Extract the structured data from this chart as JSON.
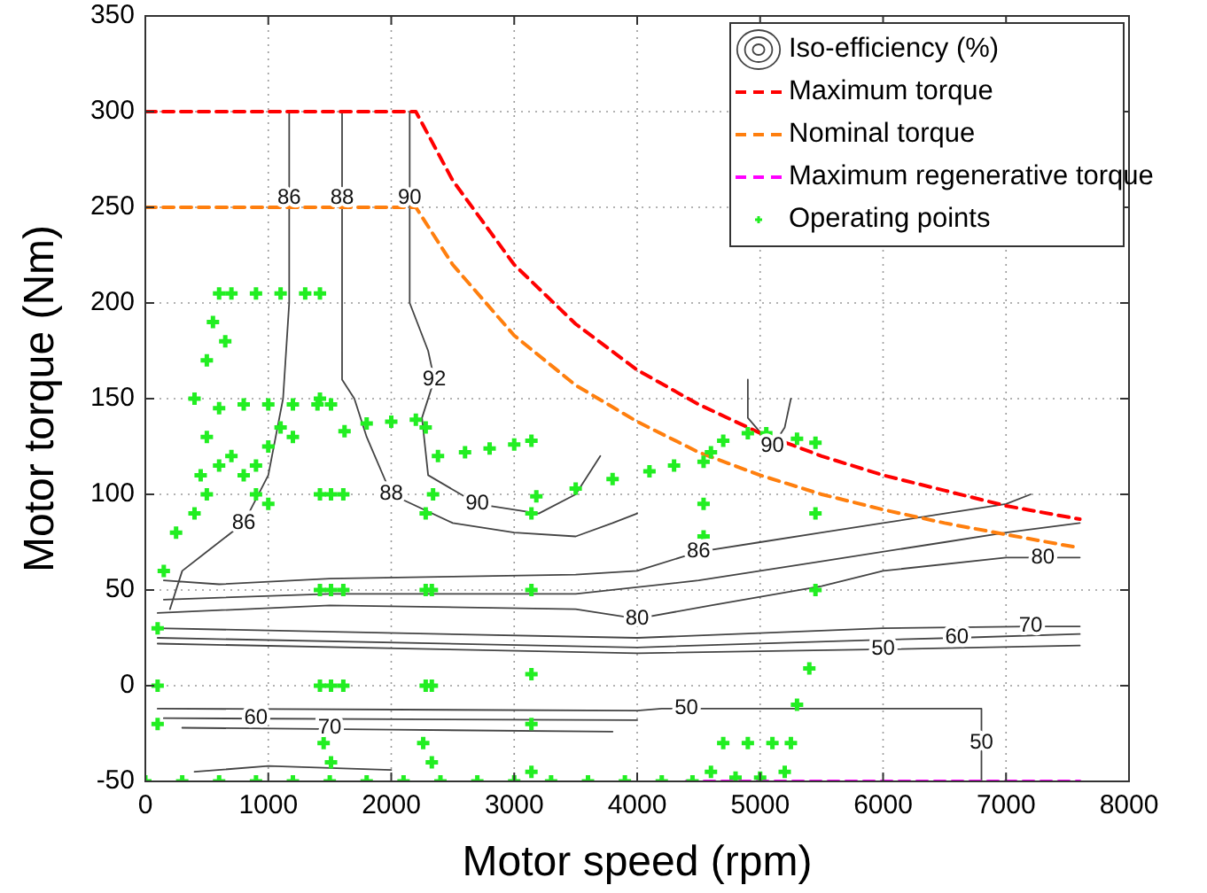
{
  "chart_data": {
    "type": "line",
    "xlabel": "Motor speed (rpm)",
    "ylabel": "Motor torque (Nm)",
    "xlim": [
      0,
      8000
    ],
    "ylim": [
      -50,
      350
    ],
    "xticks": [
      0,
      1000,
      2000,
      3000,
      4000,
      5000,
      6000,
      7000,
      8000
    ],
    "yticks": [
      -50,
      0,
      50,
      100,
      150,
      200,
      250,
      300,
      350
    ],
    "grid": true,
    "legend": "top right",
    "series": [
      {
        "name": "Iso-efficiency (%)",
        "type": "line",
        "color": "#444444",
        "line_style": "solid",
        "x": [
          1170,
          1170,
          1120,
          1000,
          800,
          500,
          300,
          200,
          null,
          1600,
          1600,
          1700,
          1800,
          2000,
          2500,
          3000,
          3500,
          3800,
          4000,
          null,
          2150,
          2150,
          2300,
          2350,
          2250,
          2300,
          2700,
          3200,
          3500,
          3700,
          null,
          4900,
          4900,
          5100,
          5200,
          5250,
          null,
          150,
          600,
          1500,
          2500,
          3500,
          4000,
          4500,
          5000,
          5500,
          6000,
          6500,
          7000,
          7200,
          null,
          150,
          1500,
          3500,
          4500,
          5500,
          6500,
          7000,
          7600,
          null,
          100,
          1500,
          3500,
          4000,
          4600,
          5500,
          6000,
          7000,
          7600,
          null,
          100,
          4000,
          6000,
          7200,
          7600,
          null,
          100,
          4000,
          6000,
          6600,
          7600,
          null,
          100,
          4000,
          6000,
          7600,
          null,
          100,
          4000,
          4200,
          6800,
          6800,
          null,
          150,
          4000,
          null,
          300,
          2000,
          3800,
          null,
          400,
          1000,
          2000
        ],
        "values": [
          300,
          200,
          150,
          110,
          85,
          70,
          60,
          40,
          null,
          300,
          160,
          150,
          130,
          100,
          85,
          80,
          78,
          85,
          90,
          null,
          300,
          200,
          175,
          160,
          140,
          110,
          95,
          90,
          100,
          120,
          null,
          160,
          140,
          125,
          135,
          150,
          null,
          55,
          53,
          56,
          57,
          58,
          60,
          70,
          75,
          80,
          85,
          90,
          95,
          100,
          null,
          45,
          48,
          48,
          55,
          65,
          75,
          80,
          85,
          null,
          38,
          42,
          40,
          35,
          42,
          52,
          60,
          67,
          67,
          null,
          30,
          25,
          30,
          31,
          31,
          null,
          25,
          20,
          24,
          25,
          27,
          null,
          22,
          17,
          19,
          21,
          null,
          -12,
          -13,
          -12,
          -12,
          -50,
          null,
          -17,
          -18,
          null,
          -22,
          -23,
          -24,
          null,
          -45,
          -42,
          -44
        ]
      },
      {
        "name": "Maximum torque",
        "type": "line",
        "color": "#ff0000",
        "line_style": "dashed",
        "x": [
          0,
          2200,
          2500,
          3000,
          3500,
          4000,
          4500,
          5000,
          5500,
          6000,
          6500,
          7000,
          7600
        ],
        "values": [
          300,
          300,
          264,
          220,
          189,
          165,
          147,
          132,
          120,
          110,
          102,
          94,
          87
        ]
      },
      {
        "name": "Nominal torque",
        "type": "line",
        "color": "#ff7f0e",
        "line_style": "dashed",
        "x": [
          0,
          2200,
          2500,
          3000,
          3500,
          4000,
          4500,
          5000,
          5500,
          6000,
          6500,
          7000,
          7600
        ],
        "values": [
          250,
          250,
          220,
          183,
          157,
          138,
          122,
          110,
          100,
          92,
          85,
          79,
          72
        ]
      },
      {
        "name": "Maximum regenerative torque",
        "type": "line",
        "color": "#ff00ff",
        "line_style": "dashed",
        "x": [
          4400,
          7600
        ],
        "values": [
          -50,
          -50
        ]
      },
      {
        "name": "Operating points",
        "type": "scatter",
        "color": "#22ee22",
        "marker": "cross",
        "x": [
          0,
          300,
          600,
          900,
          1200,
          1500,
          1800,
          2100,
          2400,
          2700,
          3000,
          3300,
          3600,
          3900,
          4200,
          100,
          100,
          100,
          150,
          250,
          400,
          500,
          600,
          400,
          500,
          550,
          600,
          650,
          500,
          450,
          700,
          800,
          900,
          1000,
          900,
          1000,
          1100,
          1200,
          700,
          900,
          1100,
          1300,
          1420,
          1420,
          1420,
          1420,
          1420,
          1450,
          600,
          800,
          1000,
          1200,
          1400,
          1510,
          1510,
          1510,
          1510,
          1510,
          1610,
          1610,
          1610,
          1620,
          1800,
          2000,
          2200,
          2280,
          2280,
          2280,
          2280,
          2260,
          2330,
          2330,
          2330,
          2340,
          2380,
          2600,
          2800,
          3000,
          3140,
          3140,
          3140,
          3140,
          3140,
          3140,
          3180,
          3500,
          3800,
          4100,
          4300,
          4540,
          4540,
          4540,
          4600,
          4700,
          4900,
          5050,
          5300,
          5450,
          5450,
          5450,
          5400,
          5300,
          5250,
          5200,
          5100,
          5000,
          4900,
          4800,
          4700,
          4600,
          4450
        ],
        "values": [
          -50,
          -50,
          -50,
          -50,
          -50,
          -50,
          -50,
          -50,
          -50,
          -50,
          -50,
          -50,
          -50,
          -50,
          -50,
          -20,
          0,
          30,
          60,
          80,
          90,
          100,
          115,
          150,
          170,
          190,
          205,
          180,
          130,
          110,
          120,
          110,
          100,
          95,
          115,
          125,
          135,
          130,
          205,
          205,
          205,
          205,
          205,
          150,
          100,
          50,
          0,
          -30,
          145,
          147,
          147,
          147,
          147,
          147,
          100,
          50,
          0,
          -40,
          0,
          50,
          100,
          133,
          137,
          138,
          139,
          135,
          90,
          50,
          0,
          -30,
          -40,
          0,
          50,
          100,
          120,
          122,
          124,
          126,
          128,
          90,
          50,
          6,
          -20,
          -45,
          99,
          103,
          108,
          112,
          115,
          117,
          95,
          78,
          122,
          128,
          132,
          132,
          129,
          127,
          90,
          50,
          9,
          -10,
          -30,
          -45,
          -30,
          -48,
          -30,
          -48,
          -30,
          -45,
          -50
        ]
      }
    ],
    "annotations": [
      {
        "text": "86",
        "x": 1170,
        "y": 255
      },
      {
        "text": "88",
        "x": 1600,
        "y": 255
      },
      {
        "text": "90",
        "x": 2150,
        "y": 255
      },
      {
        "text": "92",
        "x": 2350,
        "y": 160
      },
      {
        "text": "90",
        "x": 2700,
        "y": 95
      },
      {
        "text": "88",
        "x": 2000,
        "y": 100
      },
      {
        "text": "86",
        "x": 800,
        "y": 85
      },
      {
        "text": "90",
        "x": 5100,
        "y": 125
      },
      {
        "text": "86",
        "x": 4500,
        "y": 70
      },
      {
        "text": "80",
        "x": 4000,
        "y": 35
      },
      {
        "text": "80",
        "x": 7300,
        "y": 67
      },
      {
        "text": "70",
        "x": 7200,
        "y": 31
      },
      {
        "text": "60",
        "x": 6600,
        "y": 25
      },
      {
        "text": "50",
        "x": 6000,
        "y": 19
      },
      {
        "text": "50",
        "x": 4400,
        "y": -12
      },
      {
        "text": "60",
        "x": 900,
        "y": -17
      },
      {
        "text": "70",
        "x": 1500,
        "y": -22
      },
      {
        "text": "50",
        "x": 6800,
        "y": -30
      }
    ]
  }
}
